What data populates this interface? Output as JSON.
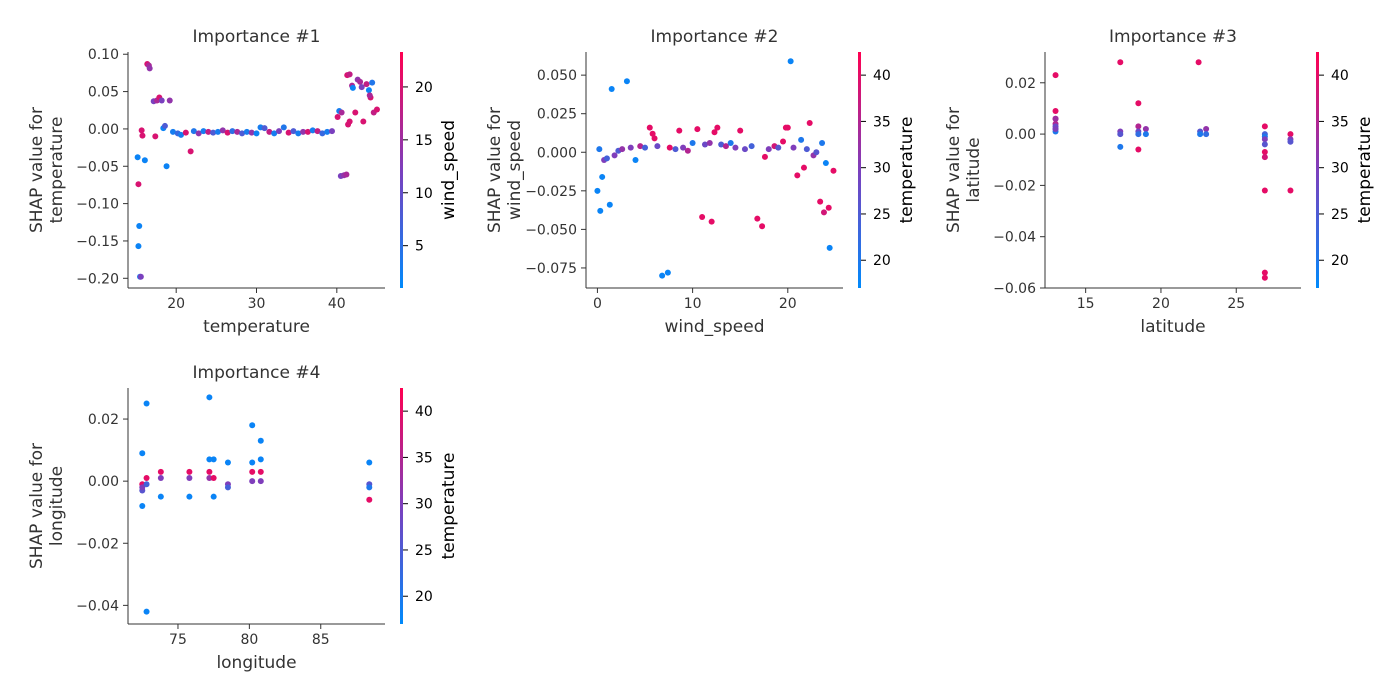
{
  "colors": {
    "low": "#008afb",
    "mid": "#7c3fbd",
    "high": "#ff0051",
    "axis": "#333333"
  },
  "chart_data": [
    {
      "type": "scatter",
      "title": "Importance #1",
      "xlabel": "temperature",
      "ylabel_lines": [
        "SHAP value for",
        "temperature"
      ],
      "xlim": [
        14,
        46
      ],
      "ylim": [
        -0.213,
        0.103
      ],
      "xticks": [
        20,
        30,
        40
      ],
      "yticks": [
        -0.2,
        -0.15,
        -0.1,
        -0.05,
        0.0,
        0.05,
        0.1
      ],
      "ytick_labels": [
        "−0.20",
        "−0.15",
        "−0.10",
        "−0.05",
        "0.00",
        "0.05",
        "0.10"
      ],
      "colorbar": {
        "label": "wind_speed",
        "min": 1,
        "max": 23.3,
        "ticks": [
          5,
          10,
          15,
          20
        ]
      },
      "points": [
        [
          15.2,
          -0.038,
          2
        ],
        [
          15.3,
          -0.074,
          20
        ],
        [
          15.4,
          -0.13,
          2
        ],
        [
          15.3,
          -0.157,
          2
        ],
        [
          15.5,
          -0.198,
          3
        ],
        [
          15.6,
          -0.198,
          12
        ],
        [
          15.7,
          -0.002,
          20
        ],
        [
          15.8,
          -0.009,
          20
        ],
        [
          16.1,
          -0.042,
          2
        ],
        [
          16.4,
          0.087,
          20
        ],
        [
          16.6,
          0.085,
          16
        ],
        [
          16.7,
          0.081,
          14
        ],
        [
          17.2,
          0.037,
          12
        ],
        [
          17.4,
          -0.01,
          20
        ],
        [
          17.6,
          0.038,
          16
        ],
        [
          17.9,
          0.042,
          20
        ],
        [
          18.2,
          0.038,
          12
        ],
        [
          18.4,
          0.001,
          2
        ],
        [
          18.6,
          0.004,
          8
        ],
        [
          18.8,
          -0.05,
          2
        ],
        [
          19.2,
          0.038,
          14
        ],
        [
          19.6,
          -0.004,
          3
        ],
        [
          20.2,
          -0.006,
          6
        ],
        [
          20.6,
          -0.008,
          3
        ],
        [
          21.2,
          -0.005,
          20
        ],
        [
          21.8,
          -0.03,
          20
        ],
        [
          22.2,
          -0.003,
          4
        ],
        [
          22.8,
          -0.006,
          14
        ],
        [
          23.4,
          -0.003,
          3
        ],
        [
          24.0,
          -0.004,
          18
        ],
        [
          24.6,
          -0.005,
          8
        ],
        [
          25.2,
          -0.004,
          3
        ],
        [
          25.8,
          -0.002,
          14
        ],
        [
          26.4,
          -0.005,
          20
        ],
        [
          27.0,
          -0.003,
          5
        ],
        [
          27.6,
          -0.004,
          16
        ],
        [
          28.2,
          -0.006,
          8
        ],
        [
          28.8,
          -0.004,
          3
        ],
        [
          29.4,
          -0.005,
          14
        ],
        [
          30.0,
          -0.006,
          2
        ],
        [
          30.5,
          0.002,
          3
        ],
        [
          31.0,
          0.001,
          8
        ],
        [
          31.6,
          -0.004,
          18
        ],
        [
          32.2,
          -0.006,
          3
        ],
        [
          32.8,
          -0.003,
          12
        ],
        [
          33.4,
          0.002,
          4
        ],
        [
          34.0,
          -0.005,
          20
        ],
        [
          34.6,
          -0.003,
          8
        ],
        [
          35.2,
          -0.006,
          3
        ],
        [
          35.8,
          -0.004,
          14
        ],
        [
          36.4,
          -0.004,
          20
        ],
        [
          37.0,
          -0.002,
          3
        ],
        [
          37.6,
          -0.003,
          18
        ],
        [
          38.2,
          -0.006,
          6
        ],
        [
          38.8,
          -0.004,
          3
        ],
        [
          39.4,
          -0.003,
          12
        ],
        [
          40.1,
          0.016,
          20
        ],
        [
          40.3,
          0.024,
          3
        ],
        [
          40.6,
          0.022,
          16
        ],
        [
          40.5,
          -0.063,
          12
        ],
        [
          40.9,
          -0.062,
          14
        ],
        [
          41.2,
          -0.061,
          16
        ],
        [
          41.4,
          0.006,
          20
        ],
        [
          41.6,
          0.01,
          20
        ],
        [
          41.3,
          0.072,
          20
        ],
        [
          41.6,
          0.073,
          18
        ],
        [
          41.9,
          0.058,
          16
        ],
        [
          42.0,
          0.055,
          2
        ],
        [
          42.3,
          0.022,
          20
        ],
        [
          42.6,
          0.066,
          14
        ],
        [
          42.9,
          0.063,
          16
        ],
        [
          43.1,
          0.056,
          12
        ],
        [
          43.3,
          0.01,
          20
        ],
        [
          43.7,
          0.06,
          18
        ],
        [
          44.0,
          0.052,
          2
        ],
        [
          44.2,
          0.042,
          20
        ],
        [
          44.4,
          0.062,
          4
        ],
        [
          44.6,
          0.022,
          18
        ],
        [
          45.0,
          0.026,
          20
        ],
        [
          44.1,
          0.045,
          16
        ]
      ]
    },
    {
      "type": "scatter",
      "title": "Importance #2",
      "xlabel": "wind_speed",
      "ylabel_lines": [
        "SHAP value for",
        "wind_speed"
      ],
      "xlim": [
        -1.2,
        25.8
      ],
      "ylim": [
        -0.088,
        0.065
      ],
      "xticks": [
        0,
        10,
        20
      ],
      "yticks": [
        -0.075,
        -0.05,
        -0.025,
        0.0,
        0.025,
        0.05
      ],
      "ytick_labels": [
        "−0.075",
        "−0.050",
        "−0.025",
        "0.000",
        "0.025",
        "0.050"
      ],
      "colorbar": {
        "label": "temperature",
        "min": 17,
        "max": 42.5,
        "ticks": [
          20,
          25,
          30,
          35,
          40
        ]
      },
      "points": [
        [
          0.0,
          -0.025,
          18
        ],
        [
          0.2,
          0.002,
          20
        ],
        [
          0.3,
          -0.038,
          18
        ],
        [
          0.5,
          -0.016,
          18
        ],
        [
          0.7,
          -0.005,
          30
        ],
        [
          1.0,
          -0.004,
          24
        ],
        [
          1.3,
          -0.034,
          18
        ],
        [
          1.5,
          0.041,
          18
        ],
        [
          1.8,
          -0.002,
          30
        ],
        [
          2.2,
          0.001,
          25
        ],
        [
          2.6,
          0.002,
          32
        ],
        [
          3.1,
          0.046,
          18
        ],
        [
          3.5,
          0.003,
          30
        ],
        [
          4.0,
          -0.005,
          18
        ],
        [
          4.5,
          0.004,
          35
        ],
        [
          5.0,
          0.003,
          24
        ],
        [
          5.5,
          0.016,
          40
        ],
        [
          5.8,
          0.012,
          40
        ],
        [
          6.0,
          0.009,
          40
        ],
        [
          6.3,
          0.004,
          28
        ],
        [
          6.8,
          -0.08,
          18
        ],
        [
          7.4,
          -0.078,
          18
        ],
        [
          7.6,
          0.003,
          40
        ],
        [
          8.2,
          0.002,
          25
        ],
        [
          8.6,
          0.014,
          40
        ],
        [
          9.0,
          0.003,
          30
        ],
        [
          9.5,
          0.001,
          35
        ],
        [
          10.0,
          0.006,
          20
        ],
        [
          10.5,
          0.015,
          40
        ],
        [
          11.0,
          -0.042,
          40
        ],
        [
          11.3,
          0.005,
          28
        ],
        [
          11.8,
          0.006,
          32
        ],
        [
          12.0,
          -0.045,
          40
        ],
        [
          12.3,
          0.013,
          40
        ],
        [
          12.6,
          0.016,
          40
        ],
        [
          13.0,
          0.005,
          25
        ],
        [
          13.5,
          0.004,
          35
        ],
        [
          14.0,
          0.006,
          20
        ],
        [
          14.5,
          0.003,
          30
        ],
        [
          15.0,
          0.014,
          40
        ],
        [
          15.5,
          0.002,
          28
        ],
        [
          16.2,
          0.004,
          24
        ],
        [
          16.8,
          -0.043,
          40
        ],
        [
          17.3,
          -0.048,
          40
        ],
        [
          17.6,
          -0.003,
          40
        ],
        [
          18.0,
          0.002,
          30
        ],
        [
          18.6,
          0.004,
          38
        ],
        [
          19.0,
          0.003,
          26
        ],
        [
          19.5,
          0.007,
          40
        ],
        [
          19.8,
          0.016,
          40
        ],
        [
          20.0,
          0.016,
          40
        ],
        [
          20.3,
          0.059,
          18
        ],
        [
          20.6,
          0.003,
          30
        ],
        [
          21.0,
          -0.015,
          40
        ],
        [
          21.4,
          0.008,
          20
        ],
        [
          21.7,
          -0.01,
          40
        ],
        [
          22.0,
          0.002,
          25
        ],
        [
          22.3,
          0.019,
          40
        ],
        [
          22.7,
          -0.002,
          32
        ],
        [
          23.0,
          0.0,
          26
        ],
        [
          23.4,
          -0.032,
          40
        ],
        [
          23.6,
          0.006,
          20
        ],
        [
          23.8,
          -0.039,
          38
        ],
        [
          24.0,
          -0.007,
          18
        ],
        [
          24.3,
          -0.036,
          40
        ],
        [
          24.4,
          -0.062,
          18
        ],
        [
          24.8,
          -0.012,
          40
        ]
      ]
    },
    {
      "type": "scatter",
      "title": "Importance #3",
      "xlabel": "latitude",
      "ylabel_lines": [
        "SHAP value for",
        "latitude"
      ],
      "xlim": [
        12.3,
        29.3
      ],
      "ylim": [
        -0.06,
        0.032
      ],
      "xticks": [
        15,
        20,
        25
      ],
      "yticks": [
        -0.06,
        -0.04,
        -0.02,
        0.0,
        0.02
      ],
      "ytick_labels": [
        "−0.06",
        "−0.04",
        "−0.02",
        "0.00",
        "0.02"
      ],
      "colorbar": {
        "label": "temperature",
        "min": 17,
        "max": 42.5,
        "ticks": [
          20,
          25,
          30,
          35,
          40
        ]
      },
      "points": [
        [
          13.0,
          0.023,
          40
        ],
        [
          13.0,
          0.009,
          40
        ],
        [
          13.0,
          0.006,
          38
        ],
        [
          13.0,
          0.004,
          35
        ],
        [
          13.0,
          0.003,
          28
        ],
        [
          13.0,
          0.002,
          24
        ],
        [
          13.0,
          0.001,
          20
        ],
        [
          13.0,
          0.006,
          33
        ],
        [
          13.0,
          0.002,
          30
        ],
        [
          17.3,
          0.028,
          40
        ],
        [
          17.3,
          0.001,
          30
        ],
        [
          17.3,
          -0.005,
          20
        ],
        [
          17.3,
          0.0,
          26
        ],
        [
          18.5,
          0.012,
          40
        ],
        [
          18.5,
          0.003,
          35
        ],
        [
          18.5,
          0.001,
          28
        ],
        [
          18.5,
          0.0,
          22
        ],
        [
          18.5,
          -0.006,
          40
        ],
        [
          19.0,
          0.002,
          32
        ],
        [
          19.0,
          0.0,
          20
        ],
        [
          22.5,
          0.028,
          40
        ],
        [
          22.6,
          0.001,
          26
        ],
        [
          22.6,
          0.0,
          20
        ],
        [
          23.0,
          0.002,
          32
        ],
        [
          23.0,
          0.0,
          22
        ],
        [
          26.9,
          0.003,
          40
        ],
        [
          26.9,
          0.0,
          24
        ],
        [
          26.9,
          -0.001,
          20
        ],
        [
          26.9,
          -0.002,
          30
        ],
        [
          26.9,
          -0.004,
          26
        ],
        [
          26.9,
          -0.007,
          40
        ],
        [
          26.9,
          -0.009,
          38
        ],
        [
          26.9,
          -0.022,
          40
        ],
        [
          26.9,
          -0.054,
          40
        ],
        [
          26.9,
          -0.056,
          40
        ],
        [
          28.6,
          0.0,
          40
        ],
        [
          28.6,
          -0.002,
          30
        ],
        [
          28.6,
          -0.003,
          26
        ],
        [
          28.6,
          -0.022,
          40
        ]
      ]
    },
    {
      "type": "scatter",
      "title": "Importance #4",
      "xlabel": "longitude",
      "ylabel_lines": [
        "SHAP value for",
        "longitude"
      ],
      "xlim": [
        71.5,
        89.5
      ],
      "ylim": [
        -0.046,
        0.03
      ],
      "xticks": [
        75,
        80,
        85
      ],
      "yticks": [
        -0.04,
        -0.02,
        0.0,
        0.02
      ],
      "ytick_labels": [
        "−0.04",
        "−0.02",
        "0.00",
        "0.02"
      ],
      "colorbar": {
        "label": "temperature",
        "min": 17,
        "max": 42.5,
        "ticks": [
          20,
          25,
          30,
          35,
          40
        ]
      },
      "points": [
        [
          72.5,
          0.009,
          18
        ],
        [
          72.5,
          -0.008,
          18
        ],
        [
          72.5,
          -0.003,
          26
        ],
        [
          72.5,
          -0.001,
          40
        ],
        [
          72.5,
          -0.002,
          30
        ],
        [
          72.8,
          0.025,
          18
        ],
        [
          72.8,
          -0.042,
          18
        ],
        [
          72.8,
          0.001,
          40
        ],
        [
          72.8,
          -0.001,
          24
        ],
        [
          73.8,
          0.003,
          40
        ],
        [
          73.8,
          0.001,
          30
        ],
        [
          73.8,
          -0.005,
          18
        ],
        [
          75.8,
          0.003,
          40
        ],
        [
          75.8,
          0.001,
          30
        ],
        [
          75.8,
          -0.005,
          18
        ],
        [
          77.2,
          0.027,
          18
        ],
        [
          77.2,
          0.007,
          18
        ],
        [
          77.2,
          0.003,
          40
        ],
        [
          77.2,
          0.001,
          32
        ],
        [
          77.5,
          0.007,
          18
        ],
        [
          77.5,
          0.001,
          40
        ],
        [
          77.5,
          -0.005,
          18
        ],
        [
          78.5,
          0.006,
          18
        ],
        [
          78.5,
          -0.001,
          30
        ],
        [
          78.5,
          -0.002,
          24
        ],
        [
          80.2,
          0.018,
          18
        ],
        [
          80.2,
          0.006,
          18
        ],
        [
          80.2,
          0.003,
          40
        ],
        [
          80.2,
          0.0,
          30
        ],
        [
          80.8,
          0.013,
          18
        ],
        [
          80.8,
          0.007,
          18
        ],
        [
          80.8,
          0.003,
          40
        ],
        [
          80.8,
          0.0,
          30
        ],
        [
          88.4,
          0.006,
          18
        ],
        [
          88.4,
          -0.001,
          26
        ],
        [
          88.4,
          -0.006,
          40
        ],
        [
          88.4,
          -0.002,
          20
        ]
      ]
    }
  ]
}
